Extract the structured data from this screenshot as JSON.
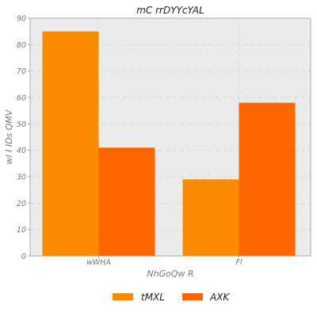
{
  "chart_data": {
    "type": "bar",
    "title": "mC rrDYYcYAL",
    "xlabel": "NhGoQw R",
    "ylabel": "wl I  IDs QMV",
    "categories": [
      "wWHA",
      "Fl"
    ],
    "series": [
      {
        "name": "tMXL",
        "values": [
          85,
          29
        ],
        "color": "#fd8b00"
      },
      {
        "name": "AXK",
        "values": [
          41,
          58
        ],
        "color": "#fd6600"
      }
    ],
    "ylim": [
      0,
      90
    ],
    "yticks": [
      0,
      10,
      20,
      30,
      40,
      50,
      60,
      70,
      80,
      90
    ],
    "grid": true,
    "legend_position": "bottom-center",
    "colors": {
      "plot_background": "#ebebeb",
      "grid": "#d9d9d9",
      "axis": "#aaaaaa"
    }
  }
}
